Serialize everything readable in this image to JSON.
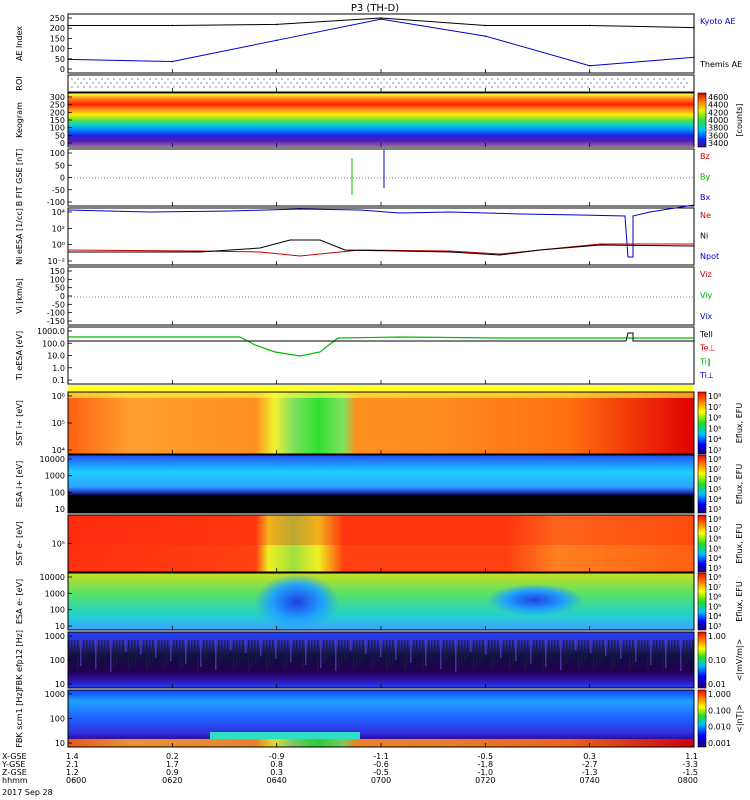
{
  "title": "P3 (TH-D)",
  "date": "2017 Sep 28",
  "panels": [
    {
      "id": "ae",
      "ylabel": "AE Index",
      "yticks": [
        "250",
        "200",
        "150",
        "100",
        "50",
        "0"
      ],
      "legend": [
        {
          "t": "Kyoto AE",
          "c": "#0000cc"
        },
        {
          "t": "Themis AE",
          "c": "#000000"
        }
      ]
    },
    {
      "id": "roi",
      "ylabel": "ROI",
      "yticks": [],
      "legend": []
    },
    {
      "id": "keo",
      "ylabel": "Keogram",
      "yticks": [
        "300",
        "250",
        "200",
        "150",
        "100",
        "50",
        "0"
      ],
      "legend": [],
      "colorbar": {
        "ticks": [
          "4600",
          "4400",
          "4200",
          "4000",
          "3800",
          "3600",
          "3400"
        ],
        "unit": "[counts]"
      }
    },
    {
      "id": "bfit",
      "ylabel": "B FIT GSE [nT]",
      "yticks": [
        "100",
        "50",
        "0",
        "-50",
        "-100"
      ],
      "legend": [
        {
          "t": "Bz",
          "c": "#cc0000"
        },
        {
          "t": "By",
          "c": "#00aa00"
        },
        {
          "t": "Bx",
          "c": "#0000cc"
        }
      ]
    },
    {
      "id": "ni",
      "ylabel": "Ni eESA [1/cc]",
      "yticks": [
        "10⁴",
        "10²",
        "10⁰",
        "10⁻²"
      ],
      "legend": [
        {
          "t": "Ne",
          "c": "#cc0000"
        },
        {
          "t": "Ni",
          "c": "#000000"
        },
        {
          "t": "Npot",
          "c": "#0000cc"
        }
      ]
    },
    {
      "id": "vi",
      "ylabel": "Vi [km/s]",
      "yticks": [
        "150",
        "100",
        "50",
        "0",
        "-50",
        "-100",
        "-150"
      ],
      "legend": [
        {
          "t": "Viz",
          "c": "#cc0000"
        },
        {
          "t": "Viy",
          "c": "#00aa00"
        },
        {
          "t": "Vix",
          "c": "#0000cc"
        }
      ]
    },
    {
      "id": "ti",
      "ylabel": "Ti eESA [eV]",
      "yticks": [
        "1000.0",
        "100.0",
        "10.0",
        "1.0",
        "0.1"
      ],
      "legend": [
        {
          "t": "Tell",
          "c": "#000000"
        },
        {
          "t": "Te⊥",
          "c": "#cc0000"
        },
        {
          "t": "Ti∥",
          "c": "#00aa00"
        },
        {
          "t": "Ti⊥",
          "c": "#0000cc"
        }
      ]
    },
    {
      "id": "sst_i",
      "ylabel": "SST i+ [eV]",
      "yticks": [
        "10⁶",
        "10⁵",
        "10⁴"
      ],
      "legend": [],
      "colorbar": {
        "ticks": [
          "10⁸",
          "10⁷",
          "10⁶",
          "10⁵",
          "10⁴",
          "10³"
        ],
        "unit": "Eflux, EFU"
      }
    },
    {
      "id": "esa_i",
      "ylabel": "ESA i+ [eV]",
      "yticks": [
        "10000",
        "1000",
        "100",
        "10"
      ],
      "legend": [],
      "colorbar": {
        "ticks": [
          "10⁸",
          "10⁷",
          "10⁶",
          "10⁵",
          "10⁴",
          "10³"
        ],
        "unit": "Eflux, EFU"
      }
    },
    {
      "id": "sst_e",
      "ylabel": "SST e- [eV]",
      "yticks": [
        "10⁵"
      ],
      "legend": [],
      "colorbar": {
        "ticks": [
          "10⁸",
          "10⁷",
          "10⁶",
          "10⁵",
          "10⁴",
          "10³"
        ],
        "unit": "Eflux, EFU"
      }
    },
    {
      "id": "esa_e",
      "ylabel": "ESA e- [eV]",
      "yticks": [
        "10000",
        "1000",
        "100",
        "10"
      ],
      "legend": [],
      "colorbar": {
        "ticks": [
          "10⁸",
          "10⁷",
          "10⁶",
          "10⁵",
          "10⁴",
          "10³"
        ],
        "unit": "Eflux, EFU"
      }
    },
    {
      "id": "fbk_e",
      "ylabel": "FBK efp12 [Hz]",
      "yticks": [
        "1000",
        "100",
        "10"
      ],
      "legend": [],
      "colorbar": {
        "ticks": [
          "1.00",
          "0.10",
          "0.01"
        ],
        "unit": "<|mV/m|>"
      }
    },
    {
      "id": "fbk_b",
      "ylabel": "FBK scm1 [Hz]",
      "yticks": [
        "1000",
        "100",
        "10"
      ],
      "legend": [],
      "colorbar": {
        "ticks": [
          "1.000",
          "0.100",
          "0.010",
          "0.001"
        ],
        "unit": "<|nT|>"
      }
    }
  ],
  "xaxis": {
    "row_labels": [
      "X-GSE",
      "Y-GSE",
      "Z-GSE",
      "hhmm"
    ],
    "columns": [
      [
        "1.4",
        "2.1",
        "1.2",
        "0600"
      ],
      [
        "0.2",
        "1.7",
        "0.9",
        "0620"
      ],
      [
        "-0.9",
        "0.8",
        "0.3",
        "0640"
      ],
      [
        "-1.1",
        "-0.6",
        "-0.5",
        "0700"
      ],
      [
        "-0.5",
        "-1.8",
        "-1.0",
        "0720"
      ],
      [
        "0.3",
        "-2.7",
        "-1.3",
        "0740"
      ],
      [
        "1.1",
        "-3.3",
        "-1.5",
        "0800"
      ]
    ]
  },
  "chart_data": {
    "type": "line",
    "title": "P3 (TH-D)",
    "x": [
      "0600",
      "0620",
      "0640",
      "0700",
      "0720",
      "0740",
      "0800"
    ],
    "series": [
      {
        "name": "Kyoto AE",
        "values": [
          50,
          40,
          140,
          240,
          160,
          20,
          60
        ]
      },
      {
        "name": "Themis AE",
        "values": [
          210,
          210,
          215,
          245,
          210,
          210,
          200
        ]
      }
    ],
    "ylabel": "AE Index",
    "ylim": [
      0,
      250
    ],
    "grid": false,
    "legend_placement": "right"
  }
}
